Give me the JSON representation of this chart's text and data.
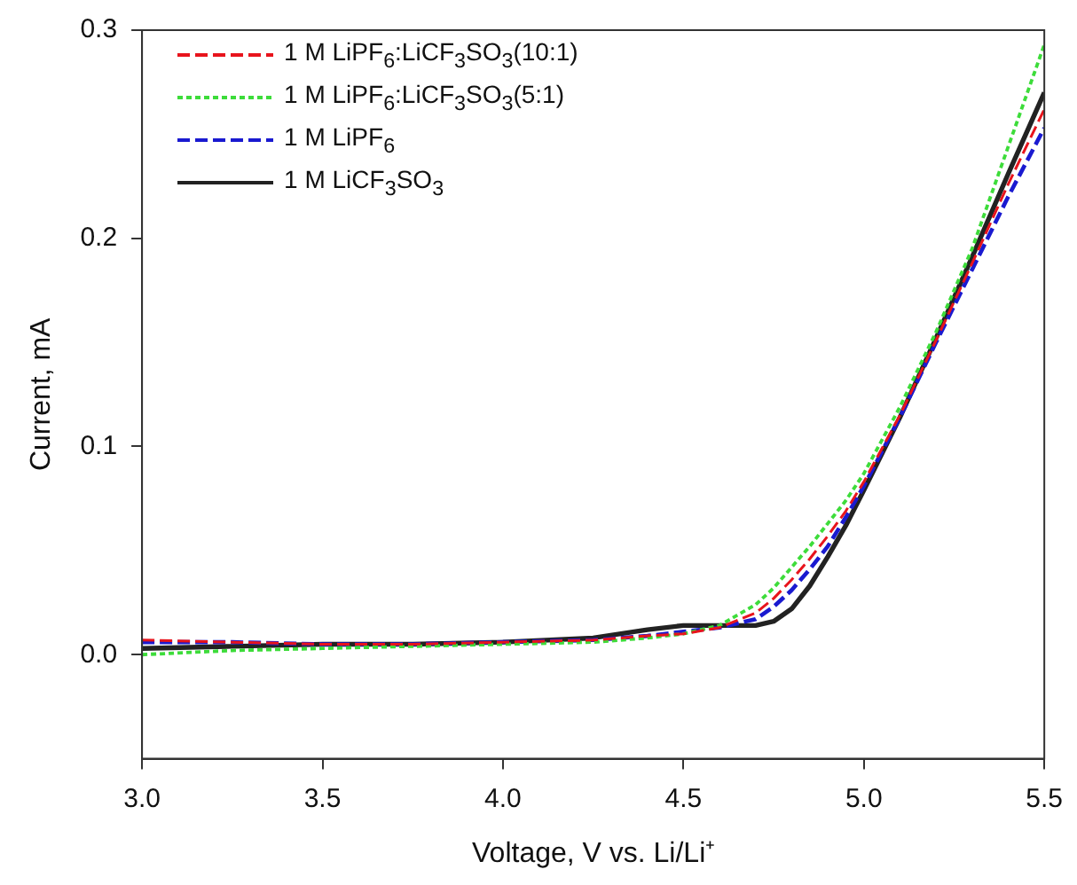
{
  "chart_data": {
    "type": "line",
    "xlabel": "Voltage, V vs. Li/Li⁺",
    "ylabel": "Current, mA",
    "x": [
      3.0,
      3.25,
      3.5,
      3.75,
      4.0,
      4.25,
      4.4,
      4.5,
      4.6,
      4.7,
      4.75,
      4.8,
      4.85,
      4.9,
      4.95,
      5.0,
      5.1,
      5.2,
      5.3,
      5.4,
      5.5
    ],
    "xlim": [
      3.0,
      5.5
    ],
    "ylim": [
      -0.05,
      0.3
    ],
    "xticks": [
      {
        "value": 3,
        "label": "3.0"
      },
      3.5,
      {
        "value": 4,
        "label": "4.0"
      },
      4.5,
      {
        "value": 5,
        "label": "5.0"
      },
      5.5
    ],
    "yticks": [
      {
        "value": 0,
        "label": "0.0"
      },
      0.1,
      0.2,
      0.3
    ],
    "grid": false,
    "legend": "top left",
    "marker": "none",
    "series": [
      {
        "name": "1 M LiPF$_{6}$:LiCF$_{3}$SO$_{3}$(10:1)",
        "color": "#e8141c",
        "line_style": "dashed",
        "values": [
          0.007,
          0.006,
          0.005,
          0.005,
          0.006,
          0.007,
          0.009,
          0.01,
          0.013,
          0.02,
          0.027,
          0.036,
          0.046,
          0.057,
          0.069,
          0.083,
          0.115,
          0.151,
          0.188,
          0.226,
          0.262
        ]
      },
      {
        "name": "1 M LiPF$_{6}$:LiCF$_{3}$SO$_{3}$(5:1)",
        "color": "#3ddc3a",
        "line_style": "dotted",
        "values": [
          0.0,
          0.002,
          0.003,
          0.004,
          0.005,
          0.006,
          0.008,
          0.01,
          0.014,
          0.024,
          0.032,
          0.042,
          0.052,
          0.063,
          0.074,
          0.087,
          0.119,
          0.155,
          0.195,
          0.244,
          0.293
        ]
      },
      {
        "name": "1 M LiPF$_{6}$",
        "color": "#1a1ad0",
        "line_style": "dashed",
        "values": [
          0.006,
          0.006,
          0.005,
          0.005,
          0.006,
          0.007,
          0.009,
          0.011,
          0.013,
          0.017,
          0.023,
          0.031,
          0.041,
          0.052,
          0.066,
          0.081,
          0.114,
          0.15,
          0.185,
          0.22,
          0.253
        ]
      },
      {
        "name": "1 M LiCF$_{3}$SO$_{3}$",
        "color": "#222222",
        "line_style": "solid",
        "values": [
          0.003,
          0.004,
          0.005,
          0.005,
          0.006,
          0.008,
          0.012,
          0.014,
          0.014,
          0.014,
          0.016,
          0.022,
          0.033,
          0.047,
          0.062,
          0.079,
          0.114,
          0.152,
          0.191,
          0.231,
          0.27
        ]
      }
    ]
  }
}
